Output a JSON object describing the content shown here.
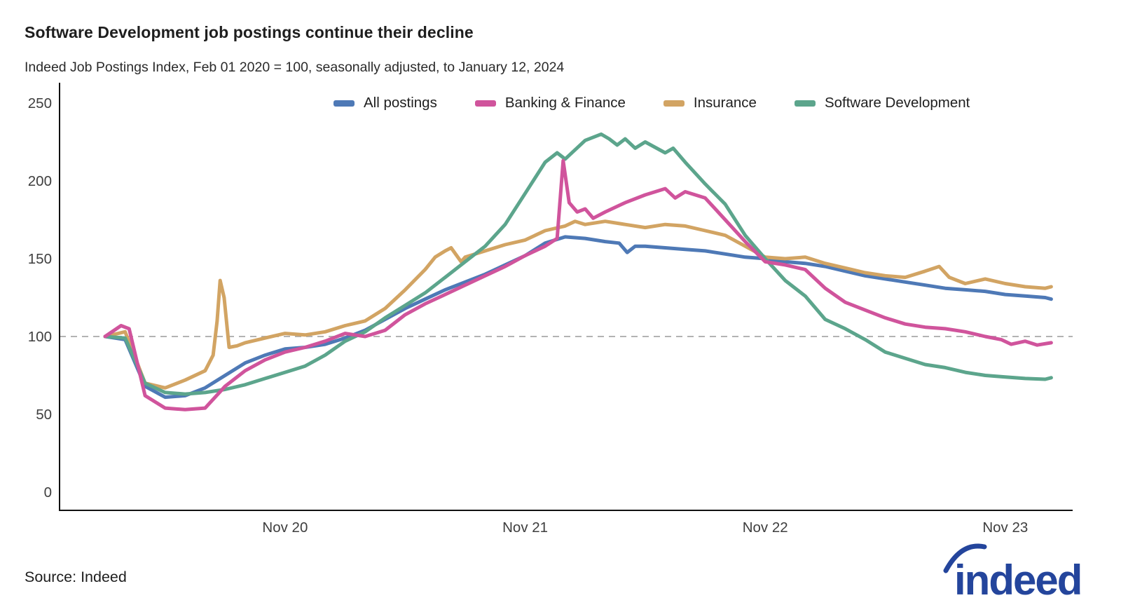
{
  "header": {
    "title": "Software Development job postings continue their decline",
    "subtitle": "Indeed Job Postings Index, Feb 01 2020 = 100, seasonally adjusted, to January 12, 2024"
  },
  "source": {
    "label": "Source: Indeed"
  },
  "branding": {
    "logo_text": "indeed",
    "logo_color": "#24459c"
  },
  "chart_data": {
    "type": "line",
    "title": "Software Development job postings continue their decline",
    "subtitle": "Indeed Job Postings Index, Feb 01 2020 = 100, seasonally adjusted, to January 12, 2024",
    "index_note": "Feb 01 2020 = 100",
    "end_date": "January 12, 2024",
    "legend_position": "top",
    "grid": "off",
    "x_axis": {
      "unit": "months_since_feb_2020",
      "ticks": [
        {
          "m": 9,
          "label": "Nov 20"
        },
        {
          "m": 21,
          "label": "Nov 21"
        },
        {
          "m": 33,
          "label": "Nov 22"
        },
        {
          "m": 45,
          "label": "Nov 23"
        }
      ]
    },
    "y_axis": {
      "ticks": [
        0,
        50,
        100,
        150,
        200,
        250
      ],
      "range": [
        0,
        263
      ]
    },
    "reference_line": {
      "value": 100,
      "style": "dashed",
      "color": "#b3b3b3"
    },
    "axis_color": "#111111",
    "series": [
      {
        "name": "All postings",
        "color": "#4e79b6",
        "points": [
          [
            0,
            100
          ],
          [
            1,
            98
          ],
          [
            2,
            68
          ],
          [
            3,
            61
          ],
          [
            4,
            62
          ],
          [
            5,
            67
          ],
          [
            6,
            75
          ],
          [
            7,
            83
          ],
          [
            8,
            88
          ],
          [
            9,
            92
          ],
          [
            10,
            93
          ],
          [
            11,
            95
          ],
          [
            12,
            99
          ],
          [
            13,
            104
          ],
          [
            14,
            111
          ],
          [
            15,
            118
          ],
          [
            16,
            124
          ],
          [
            17,
            130
          ],
          [
            18,
            135
          ],
          [
            19,
            140
          ],
          [
            20,
            146
          ],
          [
            21,
            152
          ],
          [
            22,
            160
          ],
          [
            23,
            164
          ],
          [
            24,
            163
          ],
          [
            25,
            161
          ],
          [
            25.7,
            160
          ],
          [
            26.1,
            154
          ],
          [
            26.5,
            158
          ],
          [
            27,
            158
          ],
          [
            28,
            157
          ],
          [
            29,
            156
          ],
          [
            30,
            155
          ],
          [
            31,
            153
          ],
          [
            32,
            151
          ],
          [
            33,
            150
          ],
          [
            34,
            148
          ],
          [
            35,
            147
          ],
          [
            36,
            145
          ],
          [
            37,
            142
          ],
          [
            38,
            139
          ],
          [
            39,
            137
          ],
          [
            40,
            135
          ],
          [
            41,
            133
          ],
          [
            42,
            131
          ],
          [
            43,
            130
          ],
          [
            44,
            129
          ],
          [
            45,
            127
          ],
          [
            46,
            126
          ],
          [
            47,
            125
          ],
          [
            47.3,
            124
          ]
        ]
      },
      {
        "name": "Banking & Finance",
        "color": "#d0549c",
        "points": [
          [
            0,
            100
          ],
          [
            0.8,
            107
          ],
          [
            1.2,
            105
          ],
          [
            2,
            62
          ],
          [
            3,
            54
          ],
          [
            4,
            53
          ],
          [
            5,
            54
          ],
          [
            6,
            68
          ],
          [
            7,
            78
          ],
          [
            8,
            85
          ],
          [
            9,
            90
          ],
          [
            10,
            93
          ],
          [
            11,
            97
          ],
          [
            12,
            102
          ],
          [
            13,
            100
          ],
          [
            14,
            104
          ],
          [
            15,
            114
          ],
          [
            16,
            121
          ],
          [
            17,
            127
          ],
          [
            18,
            133
          ],
          [
            19,
            139
          ],
          [
            20,
            145
          ],
          [
            21,
            152
          ],
          [
            22,
            158
          ],
          [
            22.6,
            163
          ],
          [
            22.9,
            213
          ],
          [
            23.2,
            186
          ],
          [
            23.6,
            180
          ],
          [
            24,
            182
          ],
          [
            24.4,
            176
          ],
          [
            25,
            180
          ],
          [
            26,
            186
          ],
          [
            27,
            191
          ],
          [
            28,
            195
          ],
          [
            28.5,
            189
          ],
          [
            29,
            193
          ],
          [
            30,
            189
          ],
          [
            31,
            175
          ],
          [
            32,
            161
          ],
          [
            33,
            148
          ],
          [
            34,
            146
          ],
          [
            35,
            143
          ],
          [
            36,
            131
          ],
          [
            37,
            122
          ],
          [
            38,
            117
          ],
          [
            39,
            112
          ],
          [
            40,
            108
          ],
          [
            41,
            106
          ],
          [
            42,
            105
          ],
          [
            43,
            103
          ],
          [
            44,
            100
          ],
          [
            44.8,
            98
          ],
          [
            45.3,
            95
          ],
          [
            46,
            97
          ],
          [
            46.6,
            94.5
          ],
          [
            47.3,
            96
          ]
        ]
      },
      {
        "name": "Insurance",
        "color": "#d2a463",
        "points": [
          [
            0,
            100
          ],
          [
            1,
            103
          ],
          [
            2,
            70
          ],
          [
            3,
            67
          ],
          [
            4,
            72
          ],
          [
            5,
            78
          ],
          [
            5.4,
            88
          ],
          [
            5.6,
            110
          ],
          [
            5.75,
            136
          ],
          [
            5.95,
            125
          ],
          [
            6.2,
            93
          ],
          [
            6.6,
            94
          ],
          [
            7,
            96
          ],
          [
            8,
            99
          ],
          [
            9,
            102
          ],
          [
            10,
            101
          ],
          [
            11,
            103
          ],
          [
            12,
            107
          ],
          [
            13,
            110
          ],
          [
            14,
            118
          ],
          [
            15,
            130
          ],
          [
            16,
            143
          ],
          [
            16.5,
            151
          ],
          [
            17,
            155
          ],
          [
            17.3,
            157
          ],
          [
            17.8,
            148
          ],
          [
            18,
            151
          ],
          [
            19,
            155
          ],
          [
            20,
            159
          ],
          [
            21,
            162
          ],
          [
            22,
            168
          ],
          [
            23,
            171
          ],
          [
            23.5,
            174
          ],
          [
            24,
            172
          ],
          [
            25,
            174
          ],
          [
            26,
            172
          ],
          [
            27,
            170
          ],
          [
            28,
            172
          ],
          [
            29,
            171
          ],
          [
            30,
            168
          ],
          [
            31,
            165
          ],
          [
            32,
            158
          ],
          [
            33,
            151
          ],
          [
            34,
            150
          ],
          [
            35,
            151
          ],
          [
            36,
            147
          ],
          [
            37,
            144
          ],
          [
            38,
            141
          ],
          [
            39,
            139
          ],
          [
            40,
            138
          ],
          [
            41,
            142
          ],
          [
            41.7,
            145
          ],
          [
            42.2,
            138
          ],
          [
            43,
            134
          ],
          [
            44,
            137
          ],
          [
            45,
            134
          ],
          [
            46,
            132
          ],
          [
            47,
            131
          ],
          [
            47.3,
            132
          ]
        ]
      },
      {
        "name": "Software Development",
        "color": "#5ca58c",
        "points": [
          [
            0,
            100
          ],
          [
            1,
            99
          ],
          [
            2,
            70
          ],
          [
            3,
            64
          ],
          [
            4,
            63
          ],
          [
            5,
            64
          ],
          [
            6,
            66
          ],
          [
            7,
            69
          ],
          [
            8,
            73
          ],
          [
            9,
            77
          ],
          [
            10,
            81
          ],
          [
            11,
            88
          ],
          [
            12,
            97
          ],
          [
            13,
            103
          ],
          [
            14,
            112
          ],
          [
            15,
            120
          ],
          [
            16,
            128
          ],
          [
            17,
            138
          ],
          [
            18,
            148
          ],
          [
            19,
            158
          ],
          [
            20,
            172
          ],
          [
            21,
            192
          ],
          [
            22,
            212
          ],
          [
            22.6,
            218
          ],
          [
            23,
            214
          ],
          [
            24,
            226
          ],
          [
            24.8,
            230
          ],
          [
            25.2,
            227
          ],
          [
            25.6,
            223
          ],
          [
            26,
            227
          ],
          [
            26.5,
            221
          ],
          [
            27,
            225
          ],
          [
            28,
            218
          ],
          [
            28.4,
            221
          ],
          [
            29,
            212
          ],
          [
            30,
            198
          ],
          [
            31,
            185
          ],
          [
            32,
            165
          ],
          [
            33,
            150
          ],
          [
            34,
            136
          ],
          [
            35,
            126
          ],
          [
            36,
            111
          ],
          [
            37,
            105
          ],
          [
            38,
            98
          ],
          [
            39,
            90
          ],
          [
            40,
            86
          ],
          [
            41,
            82
          ],
          [
            42,
            80
          ],
          [
            43,
            77
          ],
          [
            44,
            75
          ],
          [
            45,
            74
          ],
          [
            46,
            73
          ],
          [
            47,
            72.5
          ],
          [
            47.3,
            73.5
          ]
        ]
      }
    ]
  }
}
